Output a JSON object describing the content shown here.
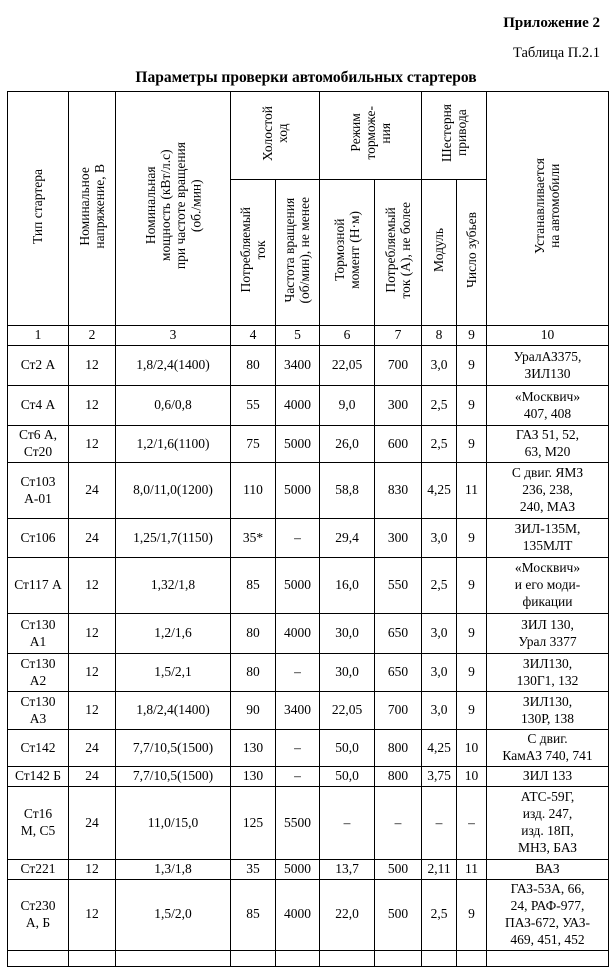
{
  "page": {
    "appendix_label": "Приложение 2",
    "table_label": "Таблица П.2.1",
    "title": "Параметры проверки автомобильных стартеров"
  },
  "table": {
    "header": {
      "starter_type": "Тип стартера",
      "nominal_voltage": "Номинальное\nнапряжение, В",
      "nominal_power": "Номинальная\nмощность (кВт/л.с)\nпри частоте вращения\n(об./мин)",
      "group_idle": "Холостой\nход",
      "idle_current": "Потребляемый\nток",
      "idle_speed": "Частота вращения\n(об/мин), не менее",
      "group_brake": "Режим\nторможе-\nния",
      "brake_torque": "Тормозной\nмомент (Н·м)",
      "brake_current": "Потребляемый\nток (А), не более",
      "group_gear": "Шестерня\nпривода",
      "gear_module": "Модуль",
      "gear_teeth": "Число зубьев",
      "installed_on": "Устанавливается\nна автомобили"
    },
    "column_numbers": [
      "1",
      "2",
      "3",
      "4",
      "5",
      "6",
      "7",
      "8",
      "9",
      "10"
    ],
    "rows": [
      [
        "Ст2 А",
        "12",
        "1,8/2,4(1400)",
        "80",
        "3400",
        "22,05",
        "700",
        "3,0",
        "9",
        "УралАЗ375,\nЗИЛ130"
      ],
      [
        "Ст4 А",
        "12",
        "0,6/0,8",
        "55",
        "4000",
        "9,0",
        "300",
        "2,5",
        "9",
        "«Москвич»\n407, 408"
      ],
      [
        "Ст6 А,\nСт20",
        "12",
        "1,2/1,6(1100)",
        "75",
        "5000",
        "26,0",
        "600",
        "2,5",
        "9",
        "ГАЗ 51, 52,\n63, М20"
      ],
      [
        "Ст103\nА-01",
        "24",
        "8,0/11,0(1200)",
        "110",
        "5000",
        "58,8",
        "830",
        "4,25",
        "11",
        "С двиг. ЯМЗ\n236, 238,\n240, МАЗ"
      ],
      [
        "Ст106",
        "24",
        "1,25/1,7(1150)",
        "35*",
        "–",
        "29,4",
        "300",
        "3,0",
        "9",
        "ЗИЛ-135М,\n135МЛТ"
      ],
      [
        "Ст117 А",
        "12",
        "1,32/1,8",
        "85",
        "5000",
        "16,0",
        "550",
        "2,5",
        "9",
        "«Москвич»\nи его моди-\nфикации"
      ],
      [
        "Ст130\nА1",
        "12",
        "1,2/1,6",
        "80",
        "4000",
        "30,0",
        "650",
        "3,0",
        "9",
        "ЗИЛ 130,\nУрал 3377"
      ],
      [
        "Ст130\nА2",
        "12",
        "1,5/2,1",
        "80",
        "–",
        "30,0",
        "650",
        "3,0",
        "9",
        "ЗИЛ130,\n130Г1, 132"
      ],
      [
        "Ст130\nА3",
        "12",
        "1,8/2,4(1400)",
        "90",
        "3400",
        "22,05",
        "700",
        "3,0",
        "9",
        "ЗИЛ130,\n130Р, 138"
      ],
      [
        "Ст142",
        "24",
        "7,7/10,5(1500)",
        "130",
        "–",
        "50,0",
        "800",
        "4,25",
        "10",
        "С двиг.\nКамАЗ 740, 741"
      ],
      [
        "Ст142 Б",
        "24",
        "7,7/10,5(1500)",
        "130",
        "–",
        "50,0",
        "800",
        "3,75",
        "10",
        "ЗИЛ 133"
      ],
      [
        "Ст16\nМ, С5",
        "24",
        "11,0/15,0",
        "125",
        "5500",
        "–",
        "–",
        "–",
        "–",
        "АТС-59Г,\nизд. 247,\nизд. 18П,\nМНЗ, БАЗ"
      ],
      [
        "Ст221",
        "12",
        "1,3/1,8",
        "35",
        "5000",
        "13,7",
        "500",
        "2,11",
        "11",
        "ВАЗ"
      ],
      [
        "Ст230\nА, Б",
        "12",
        "1,5/2,0",
        "85",
        "4000",
        "22,0",
        "500",
        "2,5",
        "9",
        "ГАЗ-53А, 66,\n24, РАФ-977,\nПАЗ-672, УАЗ-\n469, 451, 452"
      ]
    ]
  }
}
